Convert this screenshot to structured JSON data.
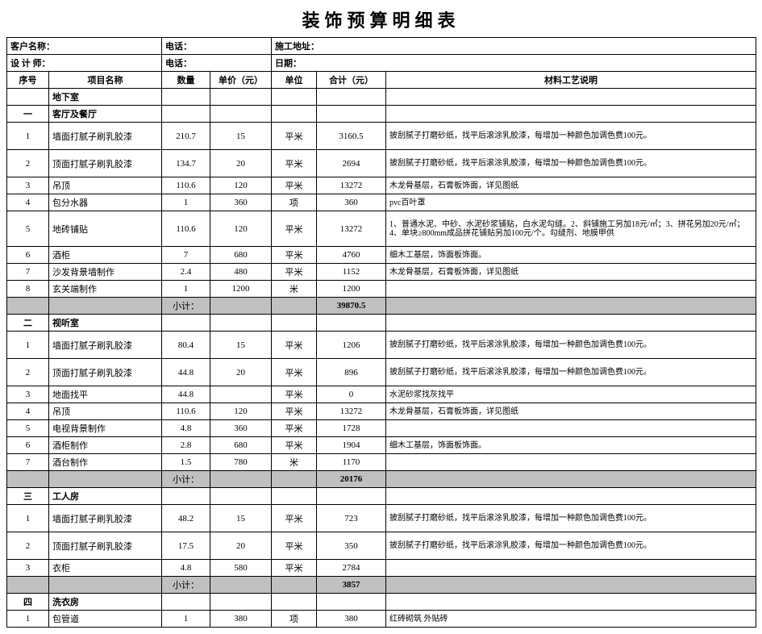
{
  "title": "装饰预算明细表",
  "info": {
    "row1": {
      "a": "客户名称：",
      "b": "电话：",
      "c": "施工地址："
    },
    "row2": {
      "a": "设 计 师：",
      "b": "电话：",
      "c": "日期："
    }
  },
  "columns": [
    "序号",
    "项目名称",
    "数量",
    "单价（元）",
    "单位",
    "合计（元）",
    "材料工艺说明"
  ],
  "basement_label": "地下室",
  "sections": [
    {
      "idx": "一",
      "name": "客厅及餐厅",
      "rows": [
        {
          "no": "1",
          "item": "墙面打腻子刷乳胶漆",
          "qty": "210.7",
          "price": "15",
          "unit": "平米",
          "total": "3160.5",
          "desc": "披刮腻子打磨砂纸，找平后滚涂乳胶漆，每增加一种颜色加调色费100元。",
          "tall": true
        },
        {
          "no": "2",
          "item": "顶面打腻子刷乳胶漆",
          "qty": "134.7",
          "price": "20",
          "unit": "平米",
          "total": "2694",
          "desc": "披刮腻子打磨砂纸，找平后滚涂乳胶漆，每增加一种颜色加调色费100元。",
          "tall": true
        },
        {
          "no": "3",
          "item": "吊顶",
          "qty": "110.6",
          "price": "120",
          "unit": "平米",
          "total": "13272",
          "desc": "木龙骨基层，石膏板饰面，详见图纸"
        },
        {
          "no": "4",
          "item": "包分水器",
          "qty": "1",
          "price": "360",
          "unit": "项",
          "total": "360",
          "desc": "pvc百叶罩"
        },
        {
          "no": "5",
          "item": "地砖铺贴",
          "qty": "110.6",
          "price": "120",
          "unit": "平米",
          "total": "13272",
          "desc": "1、普通水泥、中砂、水泥砂浆铺贴，白水泥勾缝。2、斜铺施工另加18元/㎡；3、拼花另加20元/㎡；4、单块≥800mm成品拼花铺贴另加100元/个。勾缝剂、地膜甲供",
          "tall3": true
        },
        {
          "no": "6",
          "item": "酒柜",
          "qty": "7",
          "price": "680",
          "unit": "平米",
          "total": "4760",
          "desc": "细木工基层，饰面板饰面。"
        },
        {
          "no": "7",
          "item": "沙发背景墙制作",
          "qty": "2.4",
          "price": "480",
          "unit": "平米",
          "total": "1152",
          "desc": "木龙骨基层，石膏板饰面，详见图纸"
        },
        {
          "no": "8",
          "item": "玄关端制作",
          "qty": "1",
          "price": "1200",
          "unit": "米",
          "total": "1200",
          "desc": ""
        }
      ],
      "subtotal": "39870.5"
    },
    {
      "idx": "二",
      "name": "视听室",
      "rows": [
        {
          "no": "1",
          "item": "墙面打腻子刷乳胶漆",
          "qty": "80.4",
          "price": "15",
          "unit": "平米",
          "total": "1206",
          "desc": "披刮腻子打磨砂纸，找平后滚涂乳胶漆，每增加一种颜色加调色费100元。",
          "tall": true
        },
        {
          "no": "2",
          "item": "顶面打腻子刷乳胶漆",
          "qty": "44.8",
          "price": "20",
          "unit": "平米",
          "total": "896",
          "desc": "披刮腻子打磨砂纸，找平后滚涂乳胶漆，每增加一种颜色加调色费100元。",
          "tall": true
        },
        {
          "no": "3",
          "item": "地面找平",
          "qty": "44.8",
          "price": "",
          "unit": "平米",
          "total": "0",
          "desc": "水泥砂浆找灰找平"
        },
        {
          "no": "4",
          "item": "吊顶",
          "qty": "110.6",
          "price": "120",
          "unit": "平米",
          "total": "13272",
          "desc": "木龙骨基层，石膏板饰面，详见图纸"
        },
        {
          "no": "5",
          "item": "电视背景制作",
          "qty": "4.8",
          "price": "360",
          "unit": "平米",
          "total": "1728",
          "desc": ""
        },
        {
          "no": "6",
          "item": "酒柜制作",
          "qty": "2.8",
          "price": "680",
          "unit": "平米",
          "total": "1904",
          "desc": "细木工基层，饰面板饰面。"
        },
        {
          "no": "7",
          "item": "酒台制作",
          "qty": "1.5",
          "price": "780",
          "unit": "米",
          "total": "1170",
          "desc": ""
        }
      ],
      "subtotal": "20176"
    },
    {
      "idx": "三",
      "name": "工人房",
      "rows": [
        {
          "no": "1",
          "item": "墙面打腻子刷乳胶漆",
          "qty": "48.2",
          "price": "15",
          "unit": "平米",
          "total": "723",
          "desc": "披刮腻子打磨砂纸，找平后滚涂乳胶漆，每增加一种颜色加调色费100元。",
          "tall": true
        },
        {
          "no": "2",
          "item": "顶面打腻子刷乳胶漆",
          "qty": "17.5",
          "price": "20",
          "unit": "平米",
          "total": "350",
          "desc": "披刮腻子打磨砂纸，找平后滚涂乳胶漆，每增加一种颜色加调色费100元。",
          "tall": true
        },
        {
          "no": "3",
          "item": "衣柜",
          "qty": "4.8",
          "price": "580",
          "unit": "平米",
          "total": "2784",
          "desc": ""
        }
      ],
      "subtotal": "3857"
    },
    {
      "idx": "四",
      "name": "洗衣房",
      "rows": [
        {
          "no": "1",
          "item": "包管道",
          "qty": "1",
          "price": "380",
          "unit": "项",
          "total": "380",
          "desc": "红砖砌筑 外贴砖"
        }
      ]
    }
  ],
  "subtotal_label": "小计："
}
